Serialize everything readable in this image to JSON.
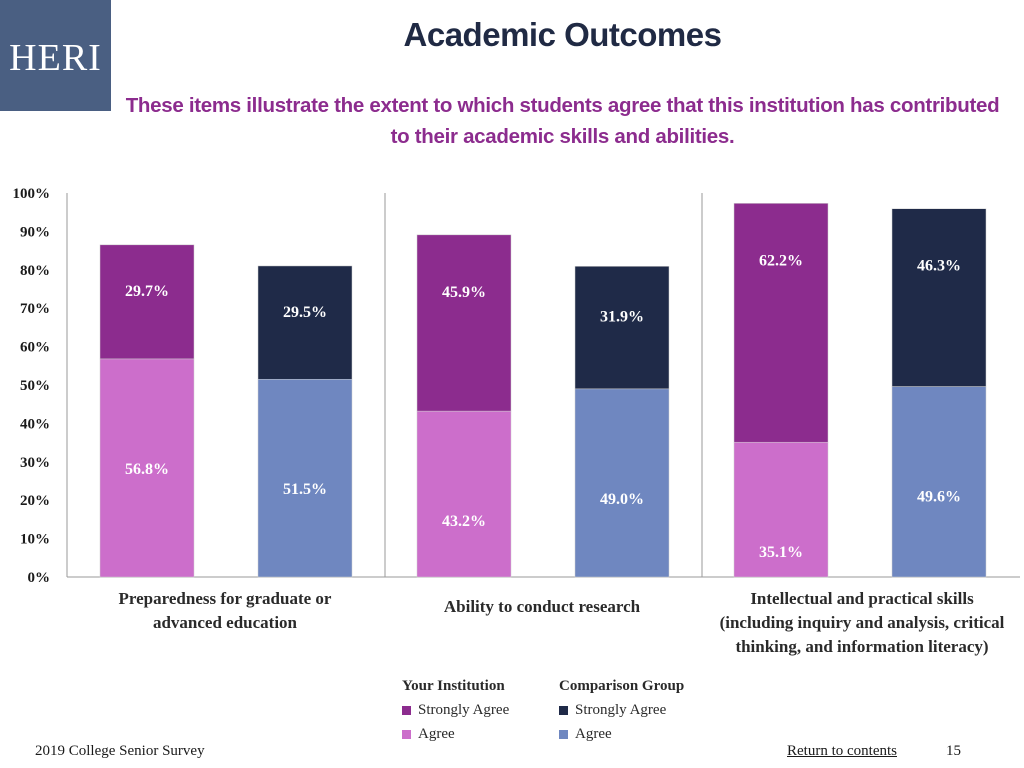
{
  "logo": {
    "text": "HERI"
  },
  "header": {
    "title": "Academic Outcomes",
    "subtitle": "These items illustrate the extent to which students agree that this institution has contributed to their academic skills and abilities."
  },
  "colors": {
    "your_strongly_agree": "#8c2c8e",
    "your_agree": "#cc6ecb",
    "comp_strongly_agree": "#1f2a48",
    "comp_agree": "#6f87c0"
  },
  "chart_data": {
    "type": "bar",
    "stacked": true,
    "categories": [
      "Preparedness for graduate or advanced education",
      "Ability to conduct research",
      "Intellectual and practical skills (including inquiry and analysis, critical thinking, and information literacy)"
    ],
    "groups": [
      "Your Institution",
      "Comparison Group"
    ],
    "series": [
      {
        "name": "Your Institution - Agree",
        "group": "Your Institution",
        "values": [
          56.8,
          43.2,
          35.1
        ],
        "labels": [
          "56.8%",
          "43.2%",
          "35.1%"
        ]
      },
      {
        "name": "Your Institution - Strongly Agree",
        "group": "Your Institution",
        "values": [
          29.7,
          45.9,
          62.2
        ],
        "labels": [
          "29.7%",
          "45.9%",
          "62.2%"
        ]
      },
      {
        "name": "Comparison Group - Agree",
        "group": "Comparison Group",
        "values": [
          51.5,
          49.0,
          49.6
        ],
        "labels": [
          "51.5%",
          "49.0%",
          "49.6%"
        ]
      },
      {
        "name": "Comparison Group - Strongly Agree",
        "group": "Comparison Group",
        "values": [
          29.5,
          31.9,
          46.3
        ],
        "labels": [
          "29.5%",
          "31.9%",
          "46.3%"
        ]
      }
    ],
    "y_ticks": [
      "0%",
      "10%",
      "20%",
      "30%",
      "40%",
      "50%",
      "60%",
      "70%",
      "80%",
      "90%",
      "100%"
    ],
    "ylim": [
      0,
      100
    ],
    "grid": false,
    "legend_position": "bottom-center"
  },
  "legend": {
    "your_institution": {
      "title": "Your Institution",
      "items": [
        "Strongly Agree",
        "Agree"
      ]
    },
    "comparison_group": {
      "title": "Comparison Group",
      "items": [
        "Strongly Agree",
        "Agree"
      ]
    }
  },
  "footer": {
    "survey": "2019 College Senior Survey",
    "return_link": "Return to contents",
    "page_number": "15"
  }
}
